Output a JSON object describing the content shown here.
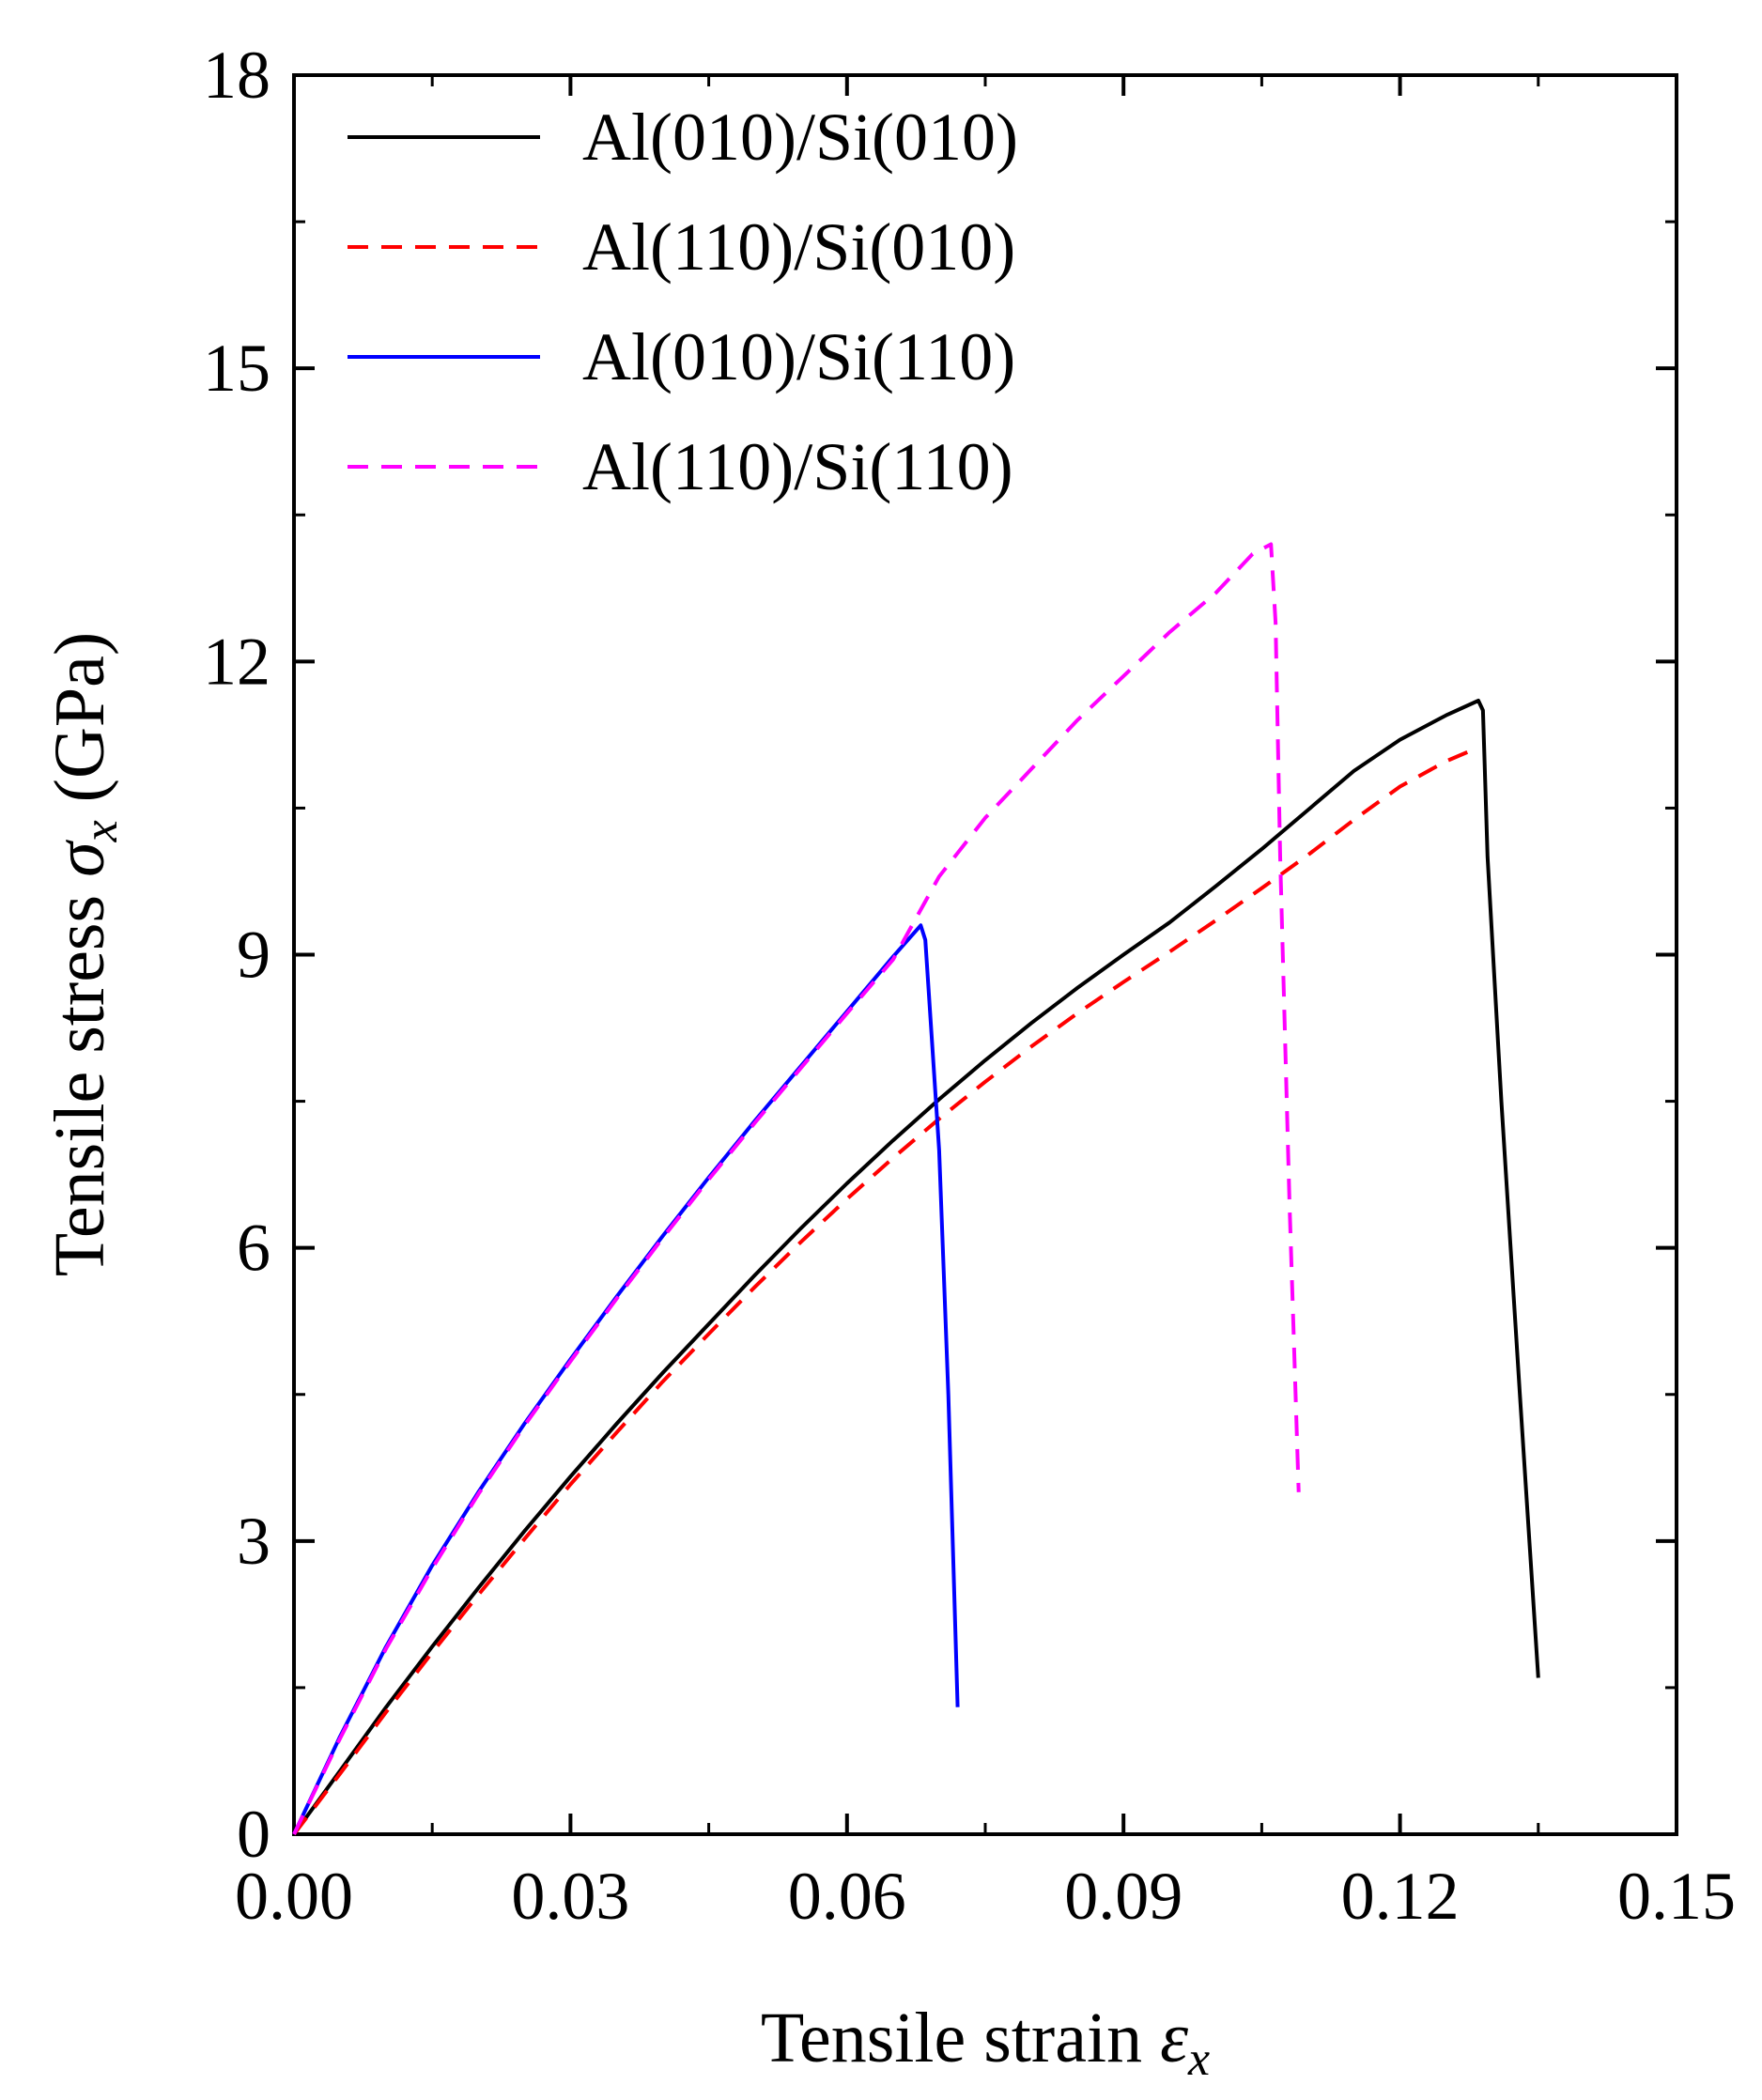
{
  "chart_data": {
    "type": "line",
    "xlabel_prefix": "Tensile strain ",
    "xlabel_symbol": "ε",
    "xlabel_subscript": "x",
    "ylabel_prefix": "Tensile stress ",
    "ylabel_symbol": "σ",
    "ylabel_subscript": "x",
    "ylabel_suffix": " (GPa)",
    "xlim": [
      0,
      0.15
    ],
    "ylim": [
      0,
      18
    ],
    "xticks": [
      0,
      0.03,
      0.06,
      0.09,
      0.12,
      0.15
    ],
    "xtick_labels": [
      "0.00",
      "0.03",
      "0.06",
      "0.09",
      "0.12",
      "0.15"
    ],
    "yticks": [
      0,
      3,
      6,
      9,
      12,
      15,
      18
    ],
    "ytick_labels": [
      "0",
      "3",
      "6",
      "9",
      "12",
      "15",
      "18"
    ],
    "grid": false,
    "legend_position": "top-left",
    "series": [
      {
        "name": "Al(010)/Si(010)",
        "color": "#000000",
        "dash": "solid",
        "points": [
          [
            0,
            0
          ],
          [
            0.005,
            0.65
          ],
          [
            0.01,
            1.3
          ],
          [
            0.015,
            1.92
          ],
          [
            0.02,
            2.52
          ],
          [
            0.025,
            3.1
          ],
          [
            0.03,
            3.66
          ],
          [
            0.035,
            4.2
          ],
          [
            0.04,
            4.72
          ],
          [
            0.045,
            5.22
          ],
          [
            0.05,
            5.72
          ],
          [
            0.055,
            6.2
          ],
          [
            0.06,
            6.66
          ],
          [
            0.065,
            7.1
          ],
          [
            0.07,
            7.52
          ],
          [
            0.075,
            7.92
          ],
          [
            0.08,
            8.3
          ],
          [
            0.085,
            8.66
          ],
          [
            0.09,
            9.0
          ],
          [
            0.095,
            9.33
          ],
          [
            0.1,
            9.7
          ],
          [
            0.105,
            10.08
          ],
          [
            0.11,
            10.48
          ],
          [
            0.115,
            10.88
          ],
          [
            0.12,
            11.2
          ],
          [
            0.125,
            11.45
          ],
          [
            0.1285,
            11.6
          ],
          [
            0.129,
            11.5
          ],
          [
            0.1295,
            10.0
          ],
          [
            0.131,
            7.5
          ],
          [
            0.133,
            4.5
          ],
          [
            0.135,
            1.6
          ]
        ]
      },
      {
        "name": "Al(110)/Si(010)",
        "color": "#ff0000",
        "dash": "dashed",
        "points": [
          [
            0,
            0
          ],
          [
            0.005,
            0.62
          ],
          [
            0.01,
            1.25
          ],
          [
            0.015,
            1.86
          ],
          [
            0.02,
            2.45
          ],
          [
            0.025,
            3.02
          ],
          [
            0.03,
            3.58
          ],
          [
            0.035,
            4.11
          ],
          [
            0.04,
            4.63
          ],
          [
            0.045,
            5.12
          ],
          [
            0.05,
            5.6
          ],
          [
            0.055,
            6.06
          ],
          [
            0.06,
            6.5
          ],
          [
            0.065,
            6.92
          ],
          [
            0.07,
            7.32
          ],
          [
            0.075,
            7.7
          ],
          [
            0.08,
            8.06
          ],
          [
            0.085,
            8.4
          ],
          [
            0.09,
            8.72
          ],
          [
            0.095,
            9.03
          ],
          [
            0.1,
            9.35
          ],
          [
            0.105,
            9.68
          ],
          [
            0.11,
            10.02
          ],
          [
            0.115,
            10.38
          ],
          [
            0.12,
            10.72
          ],
          [
            0.125,
            10.98
          ],
          [
            0.1285,
            11.12
          ]
        ]
      },
      {
        "name": "Al(010)/Si(110)",
        "color": "#0000ff",
        "dash": "solid",
        "points": [
          [
            0,
            0
          ],
          [
            0.005,
            1.0
          ],
          [
            0.01,
            1.92
          ],
          [
            0.015,
            2.75
          ],
          [
            0.02,
            3.5
          ],
          [
            0.025,
            4.2
          ],
          [
            0.03,
            4.86
          ],
          [
            0.035,
            5.5
          ],
          [
            0.04,
            6.12
          ],
          [
            0.045,
            6.72
          ],
          [
            0.05,
            7.3
          ],
          [
            0.055,
            7.86
          ],
          [
            0.06,
            8.42
          ],
          [
            0.065,
            8.98
          ],
          [
            0.068,
            9.3
          ],
          [
            0.0685,
            9.15
          ],
          [
            0.07,
            7.0
          ],
          [
            0.071,
            4.5
          ],
          [
            0.072,
            1.3
          ]
        ]
      },
      {
        "name": "Al(110)/Si(110)",
        "color": "#ff00ff",
        "dash": "dashed",
        "points": [
          [
            0,
            0
          ],
          [
            0.005,
            0.98
          ],
          [
            0.01,
            1.9
          ],
          [
            0.015,
            2.72
          ],
          [
            0.02,
            3.48
          ],
          [
            0.025,
            4.18
          ],
          [
            0.03,
            4.84
          ],
          [
            0.035,
            5.48
          ],
          [
            0.04,
            6.1
          ],
          [
            0.045,
            6.7
          ],
          [
            0.05,
            7.28
          ],
          [
            0.055,
            7.84
          ],
          [
            0.06,
            8.4
          ],
          [
            0.065,
            8.95
          ],
          [
            0.07,
            9.8
          ],
          [
            0.075,
            10.4
          ],
          [
            0.08,
            10.9
          ],
          [
            0.085,
            11.4
          ],
          [
            0.09,
            11.85
          ],
          [
            0.095,
            12.3
          ],
          [
            0.1,
            12.7
          ],
          [
            0.104,
            13.1
          ],
          [
            0.106,
            13.2
          ],
          [
            0.1065,
            12.4
          ],
          [
            0.107,
            10.0
          ],
          [
            0.108,
            6.5
          ],
          [
            0.109,
            3.5
          ]
        ]
      }
    ]
  }
}
